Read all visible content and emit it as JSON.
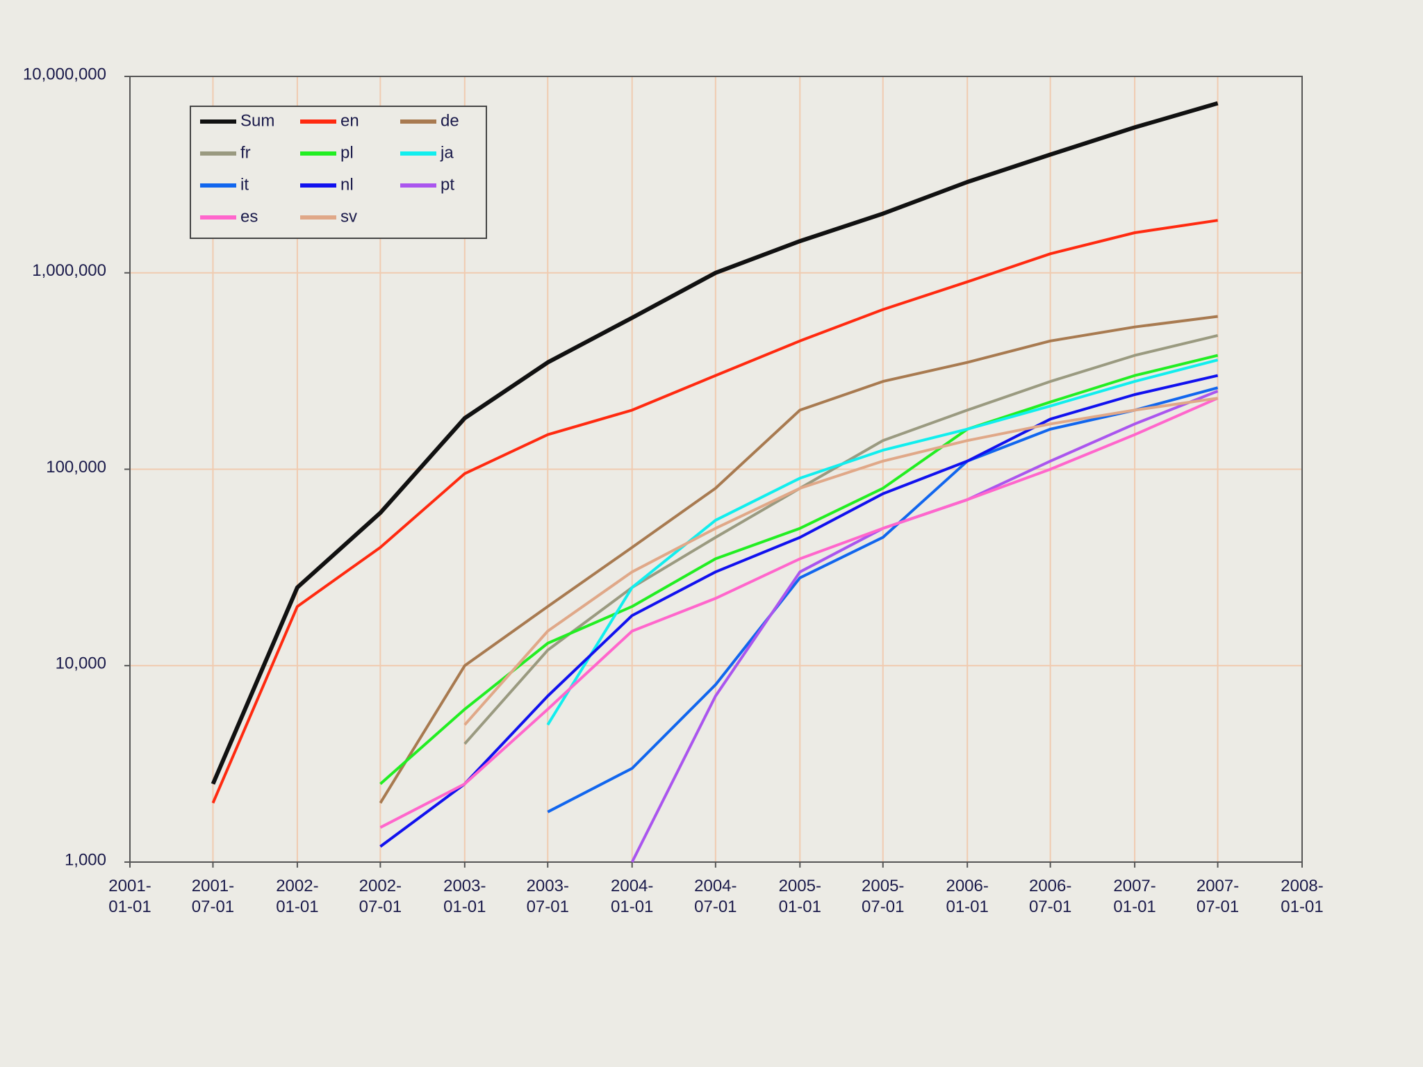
{
  "chart_data": {
    "type": "line",
    "x": [
      "2001-01-01",
      "2001-07-01",
      "2002-01-01",
      "2002-07-01",
      "2003-01-01",
      "2003-07-01",
      "2004-01-01",
      "2004-07-01",
      "2005-01-01",
      "2005-07-01",
      "2006-01-01",
      "2006-07-01",
      "2007-01-01",
      "2007-07-01"
    ],
    "series": [
      {
        "name": "Sum",
        "color": "#111111",
        "values": [
          null,
          2500,
          25000,
          60000,
          182000,
          350000,
          590000,
          1000000,
          1450000,
          2000000,
          2900000,
          4000000,
          5500000,
          7300000
        ]
      },
      {
        "name": "en",
        "color": "#ff2a10",
        "values": [
          null,
          2000,
          20000,
          40000,
          95000,
          150000,
          200000,
          300000,
          450000,
          650000,
          900000,
          1250000,
          1600000,
          1850000
        ]
      },
      {
        "name": "de",
        "color": "#a87a50",
        "values": [
          null,
          null,
          null,
          2000,
          10000,
          20000,
          40000,
          80000,
          200000,
          280000,
          350000,
          450000,
          530000,
          600000
        ]
      },
      {
        "name": "fr",
        "color": "#9a9a80",
        "values": [
          null,
          null,
          null,
          null,
          4000,
          12000,
          25000,
          45000,
          80000,
          140000,
          200000,
          280000,
          380000,
          480000
        ]
      },
      {
        "name": "pl",
        "color": "#22ee22",
        "values": [
          null,
          null,
          null,
          2500,
          6000,
          13000,
          20000,
          35000,
          50000,
          80000,
          160000,
          220000,
          300000,
          380000
        ]
      },
      {
        "name": "ja",
        "color": "#11eeee",
        "values": [
          null,
          null,
          null,
          null,
          null,
          5000,
          25000,
          55000,
          90000,
          125000,
          160000,
          210000,
          280000,
          360000
        ]
      },
      {
        "name": "it",
        "color": "#1166ee",
        "values": [
          null,
          null,
          null,
          null,
          null,
          1800,
          3000,
          8000,
          28000,
          45000,
          110000,
          160000,
          200000,
          260000
        ]
      },
      {
        "name": "nl",
        "color": "#1111ee",
        "values": [
          null,
          null,
          null,
          1200,
          2500,
          7000,
          18000,
          30000,
          45000,
          75000,
          110000,
          180000,
          240000,
          300000
        ]
      },
      {
        "name": "pt",
        "color": "#aa55ee",
        "values": [
          null,
          null,
          null,
          null,
          null,
          null,
          1000,
          7000,
          30000,
          50000,
          70000,
          110000,
          170000,
          250000
        ]
      },
      {
        "name": "es",
        "color": "#ff66cc",
        "values": [
          null,
          null,
          null,
          1500,
          2500,
          6000,
          15000,
          22000,
          35000,
          50000,
          70000,
          100000,
          150000,
          230000
        ]
      },
      {
        "name": "sv",
        "color": "#e0a888",
        "values": [
          null,
          null,
          null,
          null,
          5000,
          15000,
          30000,
          50000,
          80000,
          110000,
          140000,
          170000,
          200000,
          230000
        ]
      }
    ],
    "xlim": [
      "2001-01-01",
      "2008-01-01"
    ],
    "xticks": [
      "2001-01-01",
      "2001-07-01",
      "2002-01-01",
      "2002-07-01",
      "2003-01-01",
      "2003-07-01",
      "2004-01-01",
      "2004-07-01",
      "2005-01-01",
      "2005-07-01",
      "2006-01-01",
      "2006-07-01",
      "2007-01-01",
      "2007-07-01",
      "2008-01-01"
    ],
    "ylim": [
      1000,
      10000000
    ],
    "yticks": [
      {
        "value": 1000,
        "label": "1,000"
      },
      {
        "value": 10000,
        "label": "10,000"
      },
      {
        "value": 100000,
        "label": "100,000"
      },
      {
        "value": 1000000,
        "label": "1,000,000"
      },
      {
        "value": 10000000,
        "label": "10,000,000"
      }
    ],
    "ylog": true,
    "grid": true,
    "legend": "upper left"
  }
}
